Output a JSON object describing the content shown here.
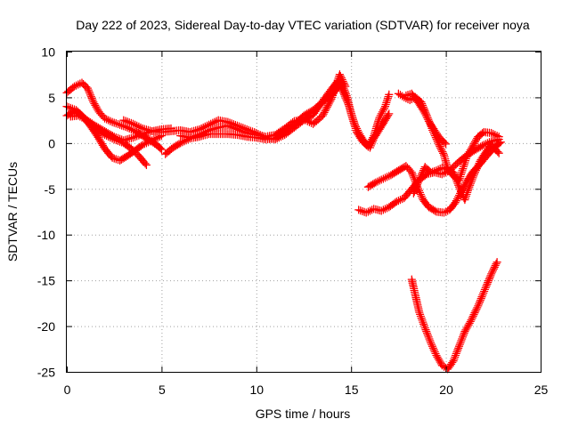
{
  "chart_data": {
    "type": "scatter",
    "title": "Day 222 of 2023, Sidereal Day-to-day VTEC variation (SDTVAR) for receiver noya",
    "xlabel": "GPS time / hours",
    "ylabel": "SDTVAR / TECUs",
    "xlim": [
      0,
      25
    ],
    "ylim": [
      -25,
      10
    ],
    "xticks": [
      0,
      5,
      10,
      15,
      20,
      25
    ],
    "yticks": [
      10,
      5,
      0,
      -5,
      -10,
      -15,
      -20,
      -25
    ],
    "grid": true,
    "marker": "plus",
    "color": "#ff0000",
    "series": [
      {
        "points": [
          [
            0.0,
            5.5
          ],
          [
            0.4,
            6.2
          ],
          [
            0.8,
            6.6
          ],
          [
            1.1,
            6.0
          ],
          [
            1.4,
            4.5
          ],
          [
            1.7,
            3.4
          ],
          [
            2.0,
            2.7
          ],
          [
            2.4,
            2.3
          ],
          [
            2.8,
            2.0
          ],
          [
            3.2,
            1.7
          ],
          [
            3.6,
            1.3
          ],
          [
            4.0,
            0.8
          ],
          [
            4.4,
            0.3
          ],
          [
            4.8,
            -0.3
          ],
          [
            5.0,
            -0.7
          ]
        ]
      },
      {
        "points": [
          [
            0.0,
            3.0
          ],
          [
            0.4,
            3.5
          ],
          [
            0.8,
            3.0
          ],
          [
            1.2,
            2.0
          ],
          [
            1.6,
            0.8
          ],
          [
            2.0,
            -0.6
          ],
          [
            2.4,
            -1.6
          ],
          [
            2.8,
            -1.9
          ],
          [
            3.2,
            -1.4
          ],
          [
            3.6,
            -0.8
          ],
          [
            4.0,
            -0.2
          ],
          [
            4.5,
            0.3
          ],
          [
            5.0,
            0.8
          ]
        ]
      },
      {
        "points": [
          [
            0.0,
            4.0
          ],
          [
            0.5,
            3.6
          ],
          [
            1.0,
            2.6
          ],
          [
            1.5,
            1.6
          ],
          [
            2.0,
            0.9
          ],
          [
            2.5,
            0.4
          ],
          [
            3.0,
            0.0
          ],
          [
            3.4,
            -0.6
          ],
          [
            3.8,
            -1.4
          ],
          [
            4.2,
            -2.4
          ]
        ]
      },
      {
        "points": [
          [
            0.2,
            2.9
          ],
          [
            0.6,
            3.0
          ],
          [
            1.0,
            2.6
          ],
          [
            1.5,
            1.9
          ],
          [
            2.0,
            1.3
          ],
          [
            2.5,
            0.7
          ],
          [
            3.0,
            0.3
          ],
          [
            3.5,
            0.6
          ],
          [
            4.0,
            1.0
          ],
          [
            4.5,
            1.3
          ],
          [
            5.0,
            1.5
          ],
          [
            5.5,
            1.6
          ]
        ]
      },
      {
        "points": [
          [
            3.0,
            2.5
          ],
          [
            3.5,
            2.1
          ],
          [
            4.0,
            1.6
          ],
          [
            4.5,
            1.3
          ],
          [
            5.0,
            1.2
          ],
          [
            5.5,
            1.3
          ],
          [
            6.0,
            1.4
          ],
          [
            6.5,
            1.2
          ],
          [
            7.0,
            1.5
          ],
          [
            7.5,
            2.0
          ],
          [
            8.0,
            2.5
          ],
          [
            8.5,
            2.3
          ],
          [
            9.0,
            1.9
          ],
          [
            9.5,
            1.5
          ],
          [
            10.0,
            1.1
          ],
          [
            10.5,
            0.6
          ],
          [
            11.0,
            0.4
          ],
          [
            11.5,
            0.9
          ],
          [
            12.0,
            1.7
          ],
          [
            12.5,
            2.5
          ],
          [
            13.0,
            3.1
          ],
          [
            13.5,
            4.6
          ],
          [
            14.0,
            6.0
          ],
          [
            14.3,
            6.8
          ],
          [
            14.6,
            5.5
          ],
          [
            14.9,
            4.0
          ],
          [
            15.2,
            2.0
          ],
          [
            15.5,
            0.8
          ],
          [
            15.8,
            -0.2
          ],
          [
            16.0,
            -0.5
          ],
          [
            16.2,
            0.5
          ],
          [
            16.5,
            1.5
          ],
          [
            16.8,
            2.5
          ],
          [
            17.0,
            3.2
          ]
        ]
      },
      {
        "points": [
          [
            5.2,
            -1.2
          ],
          [
            5.6,
            -0.5
          ],
          [
            6.0,
            0.0
          ],
          [
            6.5,
            0.5
          ],
          [
            7.0,
            0.7
          ],
          [
            7.5,
            1.0
          ],
          [
            8.0,
            1.0
          ],
          [
            8.5,
            1.0
          ],
          [
            9.0,
            0.9
          ],
          [
            9.5,
            0.7
          ],
          [
            10.0,
            0.6
          ],
          [
            10.5,
            0.4
          ],
          [
            11.0,
            0.5
          ],
          [
            11.5,
            1.2
          ],
          [
            12.0,
            2.0
          ],
          [
            12.5,
            3.0
          ],
          [
            13.0,
            3.6
          ],
          [
            13.5,
            4.5
          ],
          [
            14.0,
            5.3
          ],
          [
            14.5,
            6.6
          ],
          [
            14.8,
            5.0
          ],
          [
            15.0,
            3.2
          ],
          [
            15.3,
            1.2
          ],
          [
            15.6,
            0.2
          ],
          [
            15.9,
            -0.4
          ],
          [
            16.2,
            0.8
          ],
          [
            16.5,
            2.8
          ],
          [
            16.8,
            4.0
          ],
          [
            17.0,
            5.3
          ]
        ]
      },
      {
        "points": [
          [
            6.0,
            0.8
          ],
          [
            6.5,
            0.6
          ],
          [
            7.0,
            0.9
          ],
          [
            7.5,
            1.4
          ],
          [
            8.0,
            1.7
          ],
          [
            8.5,
            1.9
          ],
          [
            9.0,
            1.5
          ],
          [
            9.5,
            1.1
          ],
          [
            10.0,
            0.9
          ],
          [
            10.5,
            0.7
          ],
          [
            11.0,
            0.9
          ],
          [
            11.5,
            1.6
          ],
          [
            12.0,
            2.4
          ],
          [
            12.5,
            2.6
          ],
          [
            13.0,
            2.1
          ],
          [
            13.5,
            3.0
          ],
          [
            14.0,
            5.0
          ],
          [
            14.4,
            7.5
          ],
          [
            14.7,
            6.2
          ]
        ]
      },
      {
        "points": [
          [
            15.4,
            -7.3
          ],
          [
            15.8,
            -7.6
          ],
          [
            16.2,
            -7.2
          ],
          [
            16.6,
            -7.4
          ],
          [
            17.0,
            -7.0
          ],
          [
            17.4,
            -6.4
          ],
          [
            17.8,
            -6.0
          ],
          [
            18.2,
            -5.0
          ],
          [
            18.6,
            -4.0
          ],
          [
            19.0,
            -3.4
          ],
          [
            19.4,
            -3.2
          ],
          [
            19.8,
            -3.4
          ],
          [
            20.2,
            -3.0
          ],
          [
            20.6,
            -2.2
          ],
          [
            21.0,
            -1.5
          ],
          [
            21.5,
            -0.8
          ],
          [
            22.0,
            -0.2
          ],
          [
            22.4,
            0.2
          ],
          [
            22.8,
            0.4
          ]
        ]
      },
      {
        "points": [
          [
            15.9,
            -4.8
          ],
          [
            16.3,
            -4.3
          ],
          [
            16.7,
            -3.9
          ],
          [
            17.1,
            -3.5
          ],
          [
            17.5,
            -3.0
          ],
          [
            17.9,
            -2.5
          ],
          [
            18.2,
            -3.2
          ],
          [
            18.5,
            -4.8
          ],
          [
            18.8,
            -6.2
          ],
          [
            19.1,
            -7.0
          ],
          [
            19.5,
            -7.5
          ],
          [
            19.9,
            -7.6
          ],
          [
            20.2,
            -7.3
          ],
          [
            20.5,
            -6.5
          ],
          [
            20.8,
            -5.3
          ],
          [
            21.1,
            -4.2
          ],
          [
            21.4,
            -3.2
          ],
          [
            21.8,
            -2.3
          ],
          [
            22.2,
            -1.3
          ],
          [
            22.6,
            -0.4
          ],
          [
            22.9,
            0.1
          ]
        ]
      },
      {
        "points": [
          [
            17.5,
            5.4
          ],
          [
            17.8,
            5.0
          ],
          [
            18.1,
            4.7
          ],
          [
            18.4,
            5.0
          ],
          [
            18.7,
            4.5
          ],
          [
            19.0,
            3.0
          ],
          [
            19.3,
            1.4
          ],
          [
            19.6,
            0.0
          ],
          [
            19.9,
            -1.3
          ],
          [
            20.1,
            -2.8
          ],
          [
            20.4,
            -3.6
          ],
          [
            20.7,
            -4.1
          ],
          [
            20.9,
            -2.8
          ],
          [
            21.1,
            -1.5
          ],
          [
            21.4,
            -0.4
          ],
          [
            21.7,
            0.7
          ],
          [
            22.0,
            1.2
          ],
          [
            22.4,
            1.1
          ],
          [
            22.8,
            0.7
          ]
        ]
      },
      {
        "points": [
          [
            17.9,
            5.2
          ],
          [
            18.2,
            5.4
          ],
          [
            18.5,
            4.6
          ],
          [
            18.8,
            3.6
          ],
          [
            19.1,
            2.4
          ],
          [
            19.4,
            1.4
          ],
          [
            19.7,
            0.5
          ],
          [
            20.0,
            -0.1
          ]
        ]
      },
      {
        "points": [
          [
            18.3,
            -5.5
          ],
          [
            18.6,
            -4.0
          ],
          [
            18.9,
            -2.6
          ],
          [
            19.2,
            -3.2
          ],
          [
            19.5,
            -3.0
          ],
          [
            19.8,
            -2.7
          ],
          [
            20.1,
            -2.9
          ],
          [
            20.4,
            -3.2
          ],
          [
            20.7,
            -4.8
          ],
          [
            21.0,
            -6.2
          ],
          [
            21.2,
            -5.0
          ],
          [
            21.5,
            -3.4
          ],
          [
            21.8,
            -2.0
          ],
          [
            22.1,
            -1.0
          ],
          [
            22.4,
            -0.2
          ],
          [
            22.8,
            -1.1
          ]
        ]
      },
      {
        "points": [
          [
            18.2,
            -14.9
          ],
          [
            18.4,
            -16.7
          ],
          [
            18.6,
            -18.5
          ],
          [
            18.9,
            -20.2
          ],
          [
            19.2,
            -21.8
          ],
          [
            19.5,
            -23.2
          ],
          [
            19.8,
            -24.3
          ],
          [
            20.1,
            -24.7
          ],
          [
            20.4,
            -23.8
          ],
          [
            20.7,
            -22.2
          ],
          [
            21.0,
            -20.6
          ],
          [
            21.3,
            -19.5
          ],
          [
            21.7,
            -17.8
          ],
          [
            22.1,
            -15.8
          ],
          [
            22.4,
            -14.3
          ],
          [
            22.7,
            -13.0
          ]
        ]
      }
    ]
  }
}
